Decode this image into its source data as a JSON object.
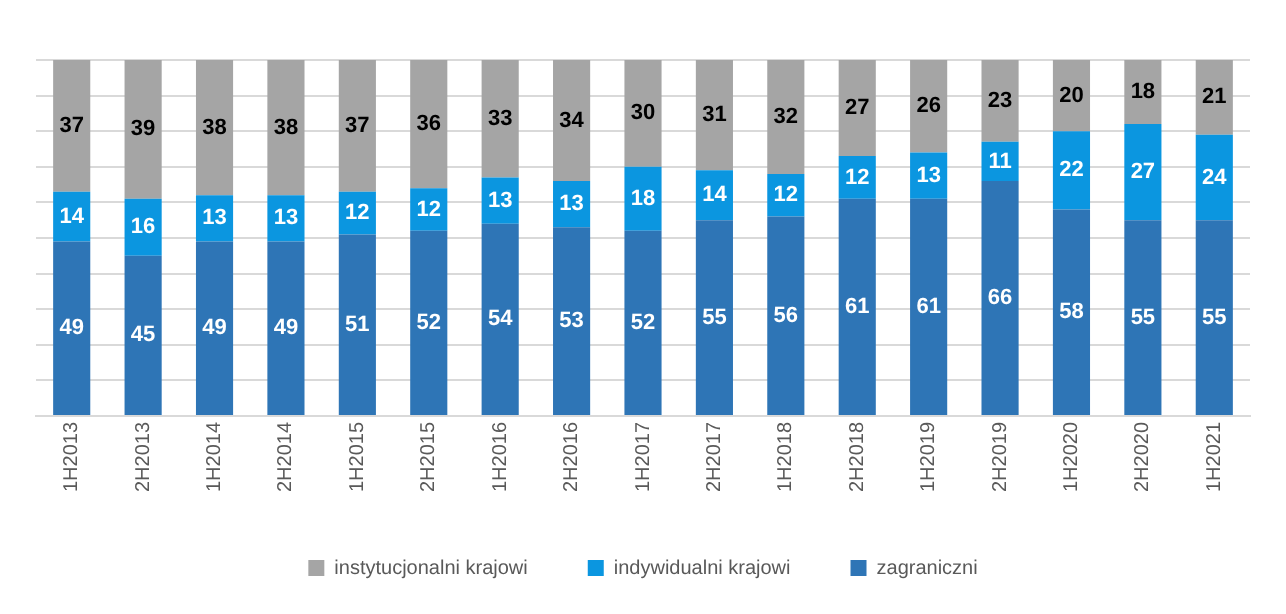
{
  "chart_data": {
    "type": "bar",
    "stacked": true,
    "data_labels": true,
    "grid": "y",
    "legend": "bottom",
    "tick_labels": "x",
    "categories": [
      "1H2013",
      "2H2013",
      "1H2014",
      "2H2014",
      "1H2015",
      "2H2015",
      "1H2016",
      "2H2016",
      "1H2017",
      "2H2017",
      "1H2018",
      "2H2018",
      "1H2019",
      "2H2019",
      "1H2020",
      "2H2020",
      "1H2021"
    ],
    "ylim": [
      0,
      100
    ],
    "yticks": [
      {
        "value": 0,
        "label": null
      },
      {
        "value": 10,
        "label": null
      },
      {
        "value": 20,
        "label": null
      },
      {
        "value": 30,
        "label": null
      },
      {
        "value": 40,
        "label": null
      },
      {
        "value": 50,
        "label": null
      },
      {
        "value": 60,
        "label": null
      },
      {
        "value": 70,
        "label": null
      },
      {
        "value": 80,
        "label": null
      },
      {
        "value": 90,
        "label": null
      },
      {
        "value": 100,
        "label": null
      }
    ],
    "series": [
      {
        "name": "zagraniczni",
        "color": "#2e75b6",
        "values": [
          49,
          45,
          49,
          49,
          51,
          52,
          54,
          53,
          52,
          55,
          56,
          61,
          61,
          66,
          58,
          55,
          55
        ]
      },
      {
        "name": "indywidualni krajowi",
        "color": "#0b96e0",
        "values": [
          14,
          16,
          13,
          13,
          12,
          12,
          13,
          13,
          18,
          14,
          12,
          12,
          13,
          11,
          22,
          27,
          24
        ]
      },
      {
        "name": "instytucjonalni krajowi",
        "color": "#a5a5a5",
        "values": [
          37,
          39,
          38,
          38,
          37,
          36,
          33,
          34,
          30,
          31,
          32,
          27,
          26,
          23,
          20,
          18,
          21
        ]
      }
    ]
  }
}
